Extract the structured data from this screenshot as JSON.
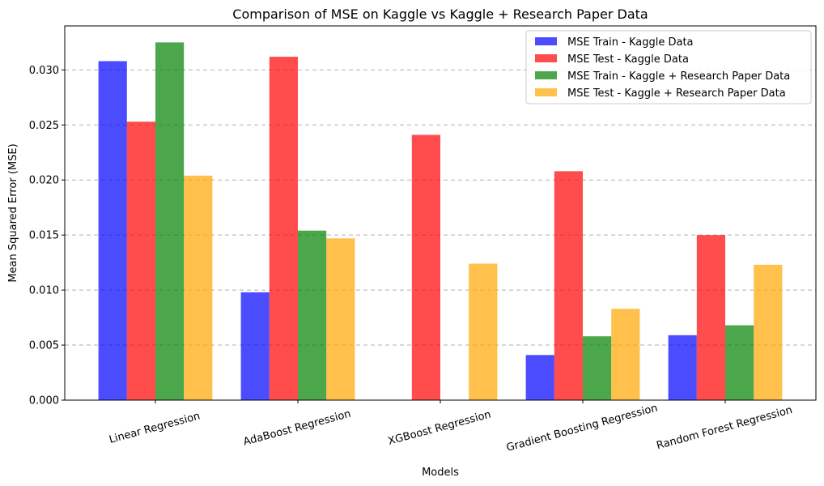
{
  "chart_data": {
    "type": "bar",
    "title": "Comparison of MSE on Kaggle vs Kaggle + Research Paper Data",
    "xlabel": "Models",
    "ylabel": "Mean Squared Error (MSE)",
    "categories": [
      "Linear Regression",
      "AdaBoost Regression",
      "XGBoost Regression",
      "Gradient Boosting Regression",
      "Random Forest Regression"
    ],
    "ylim": [
      0,
      0.034
    ],
    "yticks": [
      "0.000",
      "0.005",
      "0.010",
      "0.015",
      "0.020",
      "0.025",
      "0.030"
    ],
    "grid": "y-dashed",
    "legend_position": "top-right",
    "series": [
      {
        "name": "MSE Train - Kaggle Data",
        "color": "#0000ff",
        "values": [
          0.0308,
          0.0098,
          0.0,
          0.0041,
          0.0059
        ]
      },
      {
        "name": "MSE Test - Kaggle Data",
        "color": "#ff0000",
        "values": [
          0.0253,
          0.0312,
          0.0241,
          0.0208,
          0.015
        ]
      },
      {
        "name": "MSE Train - Kaggle + Research Paper Data",
        "color": "#008000",
        "values": [
          0.0325,
          0.0154,
          0.0,
          0.0058,
          0.0068
        ]
      },
      {
        "name": "MSE Test - Kaggle + Research Paper Data",
        "color": "#ffa500",
        "values": [
          0.0204,
          0.0147,
          0.0124,
          0.0083,
          0.0123
        ]
      }
    ]
  }
}
